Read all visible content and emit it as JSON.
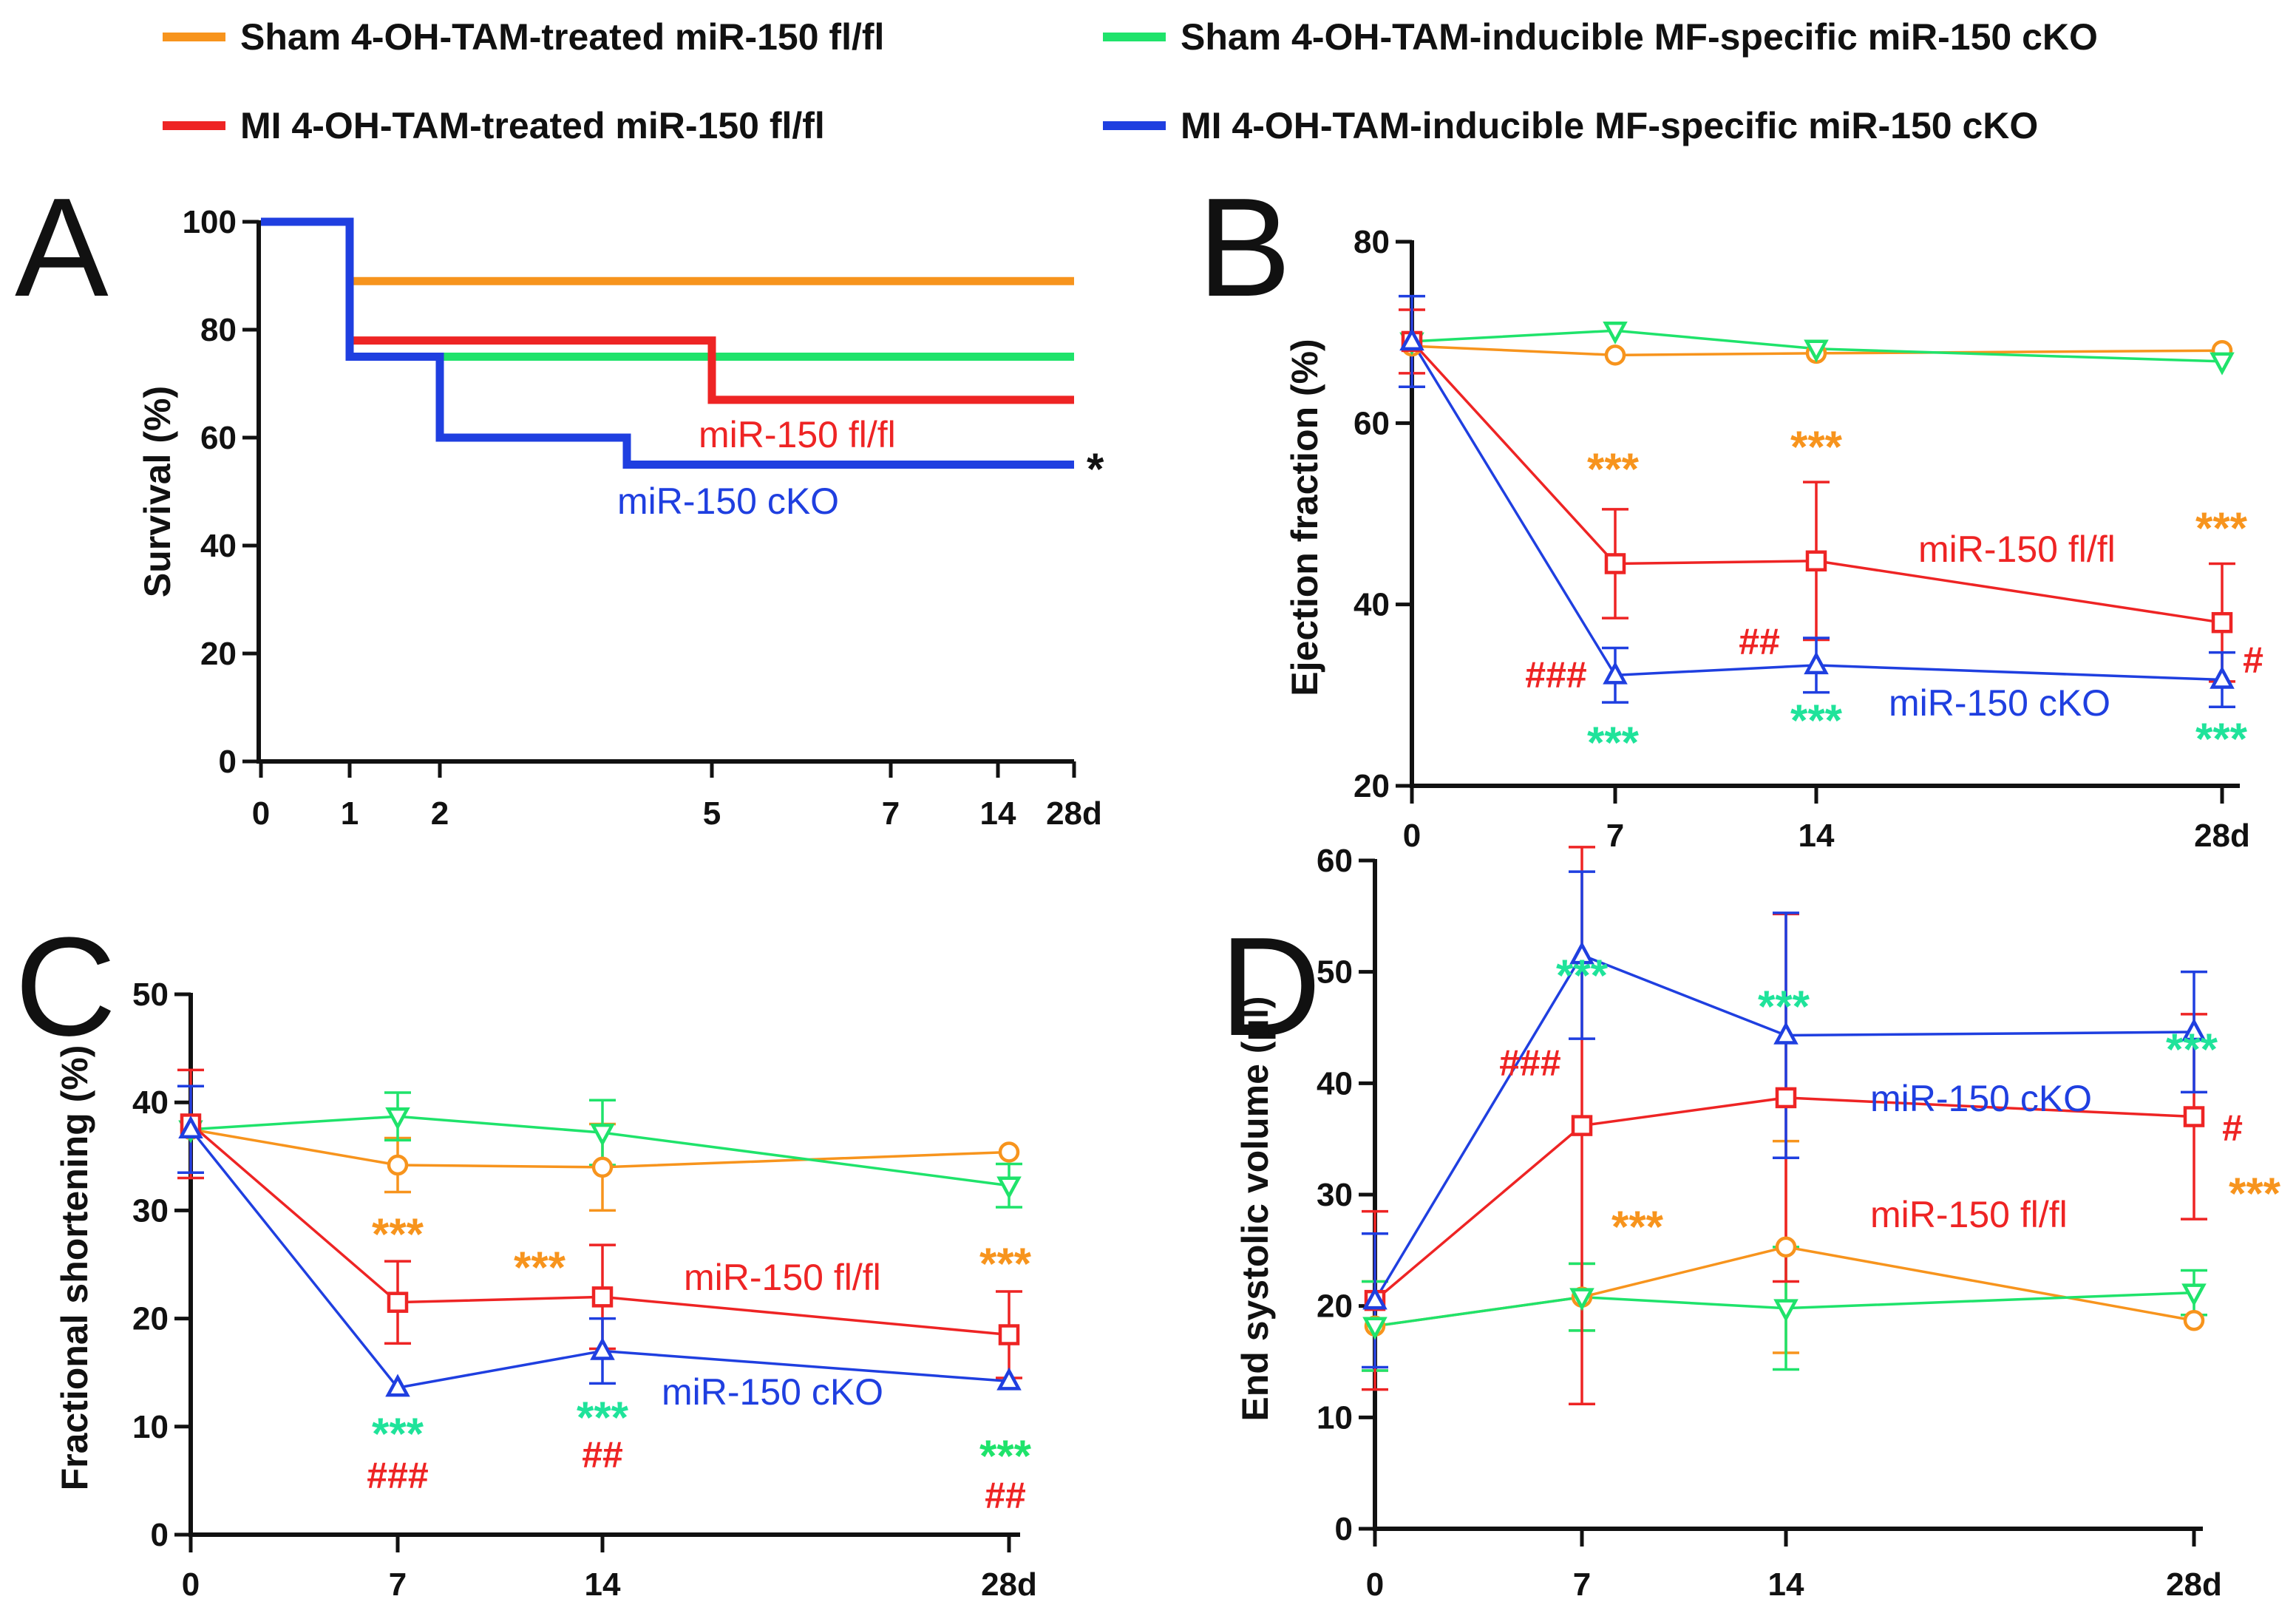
{
  "colors": {
    "sham_flfl": "#F7941D",
    "sham_cko": "#1FE36B",
    "mi_flfl": "#EE2424",
    "mi_cko": "#1F3FE0",
    "sig_sham_flfl": "#F7941D",
    "sig_sham_cko": "#1FE39A",
    "sig_mi": "#EE2424",
    "axis": "#111111"
  },
  "legend": [
    {
      "key": "sham_flfl",
      "label": "Sham 4-OH-TAM-treated miR-150 fl/fl"
    },
    {
      "key": "sham_cko",
      "label": "Sham 4-OH-TAM-inducible MF-specific miR-150 cKO"
    },
    {
      "key": "mi_flfl",
      "label": "MI 4-OH-TAM-treated miR-150 fl/fl"
    },
    {
      "key": "mi_cko",
      "label": "MI 4-OH-TAM-inducible MF-specific miR-150 cKO"
    }
  ],
  "chart_data": [
    {
      "panel": "A",
      "type": "line",
      "subtype": "kaplan-meier",
      "ylabel": "Survival (%)",
      "xlabel": "",
      "ylim": [
        0,
        100
      ],
      "yticks": [
        0,
        20,
        40,
        60,
        80,
        100
      ],
      "xtick_labels": [
        "0",
        "1",
        "2",
        "5",
        "7",
        "14",
        "28d"
      ],
      "series": [
        {
          "key": "sham_flfl",
          "steps": [
            {
              "t": "0",
              "y": 100
            },
            {
              "t": "1",
              "y": 89
            },
            {
              "t": "28d",
              "y": 89
            }
          ]
        },
        {
          "key": "sham_cko",
          "steps": [
            {
              "t": "0",
              "y": 100
            },
            {
              "t": "1",
              "y": 75
            },
            {
              "t": "28d",
              "y": 75
            }
          ]
        },
        {
          "key": "mi_flfl",
          "steps": [
            {
              "t": "0",
              "y": 100
            },
            {
              "t": "1",
              "y": 78
            },
            {
              "t": "5",
              "y": 67
            },
            {
              "t": "28d",
              "y": 67
            }
          ]
        },
        {
          "key": "mi_cko",
          "steps": [
            {
              "t": "0",
              "y": 100
            },
            {
              "t": "1",
              "y": 75
            },
            {
              "t": "2",
              "y": 60
            },
            {
              "t": "4",
              "y": 55
            },
            {
              "t": "28d",
              "y": 55
            }
          ]
        }
      ],
      "annotations": [
        {
          "id": "A_flfl",
          "text": "miR-150 fl/fl",
          "color": "mi_flfl",
          "bold": false
        },
        {
          "id": "A_cko",
          "text": "miR-150 cKO",
          "color": "mi_cko",
          "bold": false
        },
        {
          "id": "A_star",
          "text": "*",
          "color": "axis",
          "bold": true
        }
      ]
    },
    {
      "panel": "B",
      "type": "line",
      "ylabel": "Ejection fraction (%)",
      "xlabel": "",
      "ylim": [
        20,
        80
      ],
      "yticks": [
        20,
        40,
        60,
        80
      ],
      "x": [
        0,
        7,
        14,
        28
      ],
      "xtick_labels": [
        "0",
        "7",
        "14",
        "28d"
      ],
      "series": [
        {
          "key": "sham_flfl",
          "marker": "circle",
          "values": [
            68.5,
            67.5,
            67.7,
            68
          ],
          "errors": [
            0,
            0,
            0,
            0
          ]
        },
        {
          "key": "sham_cko",
          "marker": "triangle-down",
          "values": [
            69,
            70.2,
            68.2,
            66.8
          ],
          "errors": [
            0,
            0,
            0,
            0
          ]
        },
        {
          "key": "mi_flfl",
          "marker": "square",
          "values": [
            69,
            44.5,
            44.8,
            38
          ],
          "errors": [
            3.5,
            6,
            8.7,
            6.5
          ]
        },
        {
          "key": "mi_cko",
          "marker": "triangle-up",
          "values": [
            69,
            32.2,
            33.3,
            31.7
          ],
          "errors": [
            5,
            3,
            3,
            3
          ]
        }
      ],
      "annotations": [
        {
          "id": "B_s7",
          "text": "***",
          "color": "sig_sham_flfl",
          "bold": true
        },
        {
          "id": "B_s14",
          "text": "***",
          "color": "sig_sham_flfl",
          "bold": true
        },
        {
          "id": "B_s28",
          "text": "***",
          "color": "sig_sham_flfl",
          "bold": true
        },
        {
          "id": "B_flfl",
          "text": "miR-150 fl/fl",
          "color": "mi_flfl",
          "bold": false
        },
        {
          "id": "B_h7",
          "text": "###",
          "color": "sig_mi",
          "bold": true
        },
        {
          "id": "B_h14",
          "text": "##",
          "color": "sig_mi",
          "bold": true
        },
        {
          "id": "B_h28",
          "text": "#",
          "color": "sig_mi",
          "bold": true
        },
        {
          "id": "B_cko",
          "text": "miR-150 cKO",
          "color": "mi_cko",
          "bold": false
        },
        {
          "id": "B_g7",
          "text": "***",
          "color": "sig_sham_cko",
          "bold": true
        },
        {
          "id": "B_g14",
          "text": "***",
          "color": "sig_sham_cko",
          "bold": true
        },
        {
          "id": "B_g28",
          "text": "***",
          "color": "sig_sham_cko",
          "bold": true
        }
      ]
    },
    {
      "panel": "C",
      "type": "line",
      "ylabel": "Fractional shortening (%)",
      "xlabel": "",
      "ylim": [
        0,
        50
      ],
      "yticks": [
        0,
        10,
        20,
        30,
        40,
        50
      ],
      "x": [
        0,
        7,
        14,
        28
      ],
      "xtick_labels": [
        "0",
        "7",
        "14",
        "28d"
      ],
      "series": [
        {
          "key": "sham_flfl",
          "marker": "circle",
          "values": [
            37.5,
            34.2,
            34,
            35.4
          ],
          "errors": [
            0,
            2.5,
            4,
            0
          ]
        },
        {
          "key": "sham_cko",
          "marker": "triangle-down",
          "values": [
            37.5,
            38.7,
            37.2,
            32.3
          ],
          "errors": [
            0,
            2.2,
            3,
            2
          ]
        },
        {
          "key": "mi_flfl",
          "marker": "square",
          "values": [
            38,
            21.5,
            22,
            18.5
          ],
          "errors": [
            5,
            3.8,
            4.8,
            4
          ]
        },
        {
          "key": "mi_cko",
          "marker": "triangle-up",
          "values": [
            37.5,
            13.6,
            17,
            14.2
          ],
          "errors": [
            4,
            0,
            3,
            0
          ]
        }
      ],
      "annotations": [
        {
          "id": "C_s7",
          "text": "***",
          "color": "sig_sham_flfl",
          "bold": true
        },
        {
          "id": "C_s14",
          "text": "***",
          "color": "sig_sham_flfl",
          "bold": true
        },
        {
          "id": "C_s28",
          "text": "***",
          "color": "sig_sham_flfl",
          "bold": true
        },
        {
          "id": "C_flfl",
          "text": "miR-150 fl/fl",
          "color": "mi_flfl",
          "bold": false
        },
        {
          "id": "C_cko",
          "text": "miR-150 cKO",
          "color": "mi_cko",
          "bold": false
        },
        {
          "id": "C_g7",
          "text": "***",
          "color": "sig_sham_cko",
          "bold": true
        },
        {
          "id": "C_g14",
          "text": "***",
          "color": "sig_sham_cko",
          "bold": true
        },
        {
          "id": "C_g28",
          "text": "***",
          "color": "sham_cko",
          "bold": true
        },
        {
          "id": "C_h7",
          "text": "###",
          "color": "sig_mi",
          "bold": true
        },
        {
          "id": "C_h14",
          "text": "##",
          "color": "sig_mi",
          "bold": true
        },
        {
          "id": "C_h28",
          "text": "##",
          "color": "sig_mi",
          "bold": true
        }
      ]
    },
    {
      "panel": "D",
      "type": "line",
      "ylabel": "End systolic volume (μl)",
      "xlabel": "",
      "ylim": [
        0,
        60
      ],
      "yticks": [
        0,
        10,
        20,
        30,
        40,
        50,
        60
      ],
      "x": [
        0,
        7,
        14,
        28
      ],
      "xtick_labels": [
        "0",
        "7",
        "14",
        "28d"
      ],
      "series": [
        {
          "key": "sham_flfl",
          "marker": "circle",
          "values": [
            18.2,
            20.8,
            25.3,
            18.7
          ],
          "errors": [
            4,
            3,
            9.5,
            0
          ]
        },
        {
          "key": "sham_cko",
          "marker": "triangle-down",
          "values": [
            18.2,
            20.8,
            19.8,
            21.2
          ],
          "errors": [
            4,
            3,
            5.5,
            2
          ]
        },
        {
          "key": "mi_flfl",
          "marker": "square",
          "values": [
            20.5,
            36.2,
            38.7,
            37
          ],
          "errors": [
            8,
            25,
            16.5,
            9.2
          ]
        },
        {
          "key": "mi_cko",
          "marker": "triangle-up",
          "values": [
            20.5,
            51.5,
            44.3,
            44.6
          ],
          "errors": [
            6,
            7.5,
            11,
            5.4
          ]
        }
      ],
      "annotations": [
        {
          "id": "D_g7",
          "text": "***",
          "color": "sig_sham_cko",
          "bold": true
        },
        {
          "id": "D_g14",
          "text": "***",
          "color": "sig_sham_cko",
          "bold": true
        },
        {
          "id": "D_g28",
          "text": "***",
          "color": "sig_sham_cko",
          "bold": true
        },
        {
          "id": "D_h7",
          "text": "###",
          "color": "sig_mi",
          "bold": true
        },
        {
          "id": "D_cko",
          "text": "miR-150 cKO",
          "color": "mi_cko",
          "bold": false
        },
        {
          "id": "D_h28",
          "text": "#",
          "color": "sig_mi",
          "bold": true
        },
        {
          "id": "D_flfl",
          "text": "miR-150 fl/fl",
          "color": "mi_flfl",
          "bold": false
        },
        {
          "id": "D_s7",
          "text": "***",
          "color": "sig_sham_flfl",
          "bold": true
        },
        {
          "id": "D_s28",
          "text": "***",
          "color": "sig_sham_flfl",
          "bold": true
        }
      ]
    }
  ]
}
